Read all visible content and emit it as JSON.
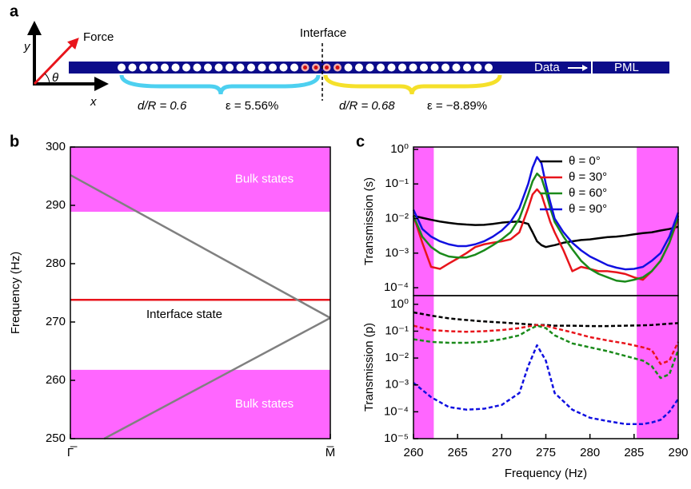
{
  "panel_a": {
    "label": "a",
    "axis_y": "y",
    "axis_x": "x",
    "force": "Force",
    "angle": "θ",
    "interface": "Interface",
    "data": "Data",
    "pml": "PML",
    "left_ratio": "d/R = 0.6",
    "left_strain": "ε = 5.56%",
    "right_ratio": "d/R = 0.68",
    "right_strain": "ε = −8.89%"
  },
  "chart_data": [
    {
      "type": "line",
      "label": "b",
      "ylabel": "Frequency (Hz)",
      "xlim": [
        0,
        1
      ],
      "xticks": [
        {
          "value": 0,
          "label": "Γ̅"
        },
        {
          "value": 1,
          "label": "M̅"
        }
      ],
      "ylim": [
        250,
        300
      ],
      "yticks": [
        250,
        260,
        270,
        280,
        290,
        300
      ],
      "bands": [
        {
          "axis": "y",
          "range": [
            288.9,
            300
          ],
          "label": "Bulk states",
          "color": "#ff66ff"
        },
        {
          "axis": "y",
          "range": [
            250,
            261.8
          ],
          "label": "Bulk states",
          "color": "#ff66ff"
        }
      ],
      "annotation": "Interface state",
      "series": [
        {
          "color": "#e8141b",
          "x": [
            0,
            1
          ],
          "values": [
            273.8,
            273.8
          ]
        },
        {
          "color": "#808080",
          "x": [
            0,
            1
          ],
          "values": [
            295.2,
            270.7
          ]
        },
        {
          "color": "#808080",
          "x": [
            0.13,
            1
          ],
          "values": [
            250,
            270.7
          ]
        }
      ]
    },
    {
      "type": "line",
      "label": "c",
      "ylabel": "Transmission (s)",
      "log_y": true,
      "legend": "upper right",
      "xlim": [
        260,
        290
      ],
      "ylim": [
        5.9e-05,
        1.17
      ],
      "yticks": [
        {
          "value": 0.0001,
          "label": "10⁻⁴"
        },
        {
          "value": 0.001,
          "label": "10⁻³"
        },
        {
          "value": 0.01,
          "label": "10⁻²"
        },
        {
          "value": 0.1,
          "label": "10⁻¹"
        },
        {
          "value": 1,
          "label": "10⁰"
        }
      ],
      "bands": [
        {
          "axis": "x",
          "range": [
            260,
            262.3
          ],
          "color": "#ff66ff"
        },
        {
          "axis": "x",
          "range": [
            285.3,
            290
          ],
          "color": "#ff66ff"
        }
      ],
      "x": [
        260,
        261,
        262,
        263,
        264,
        265,
        266,
        267,
        268,
        269,
        270,
        271,
        272,
        273,
        273.5,
        274,
        274.5,
        275,
        275.5,
        276,
        277,
        278,
        279,
        280,
        281,
        282,
        283,
        284,
        285,
        286,
        287,
        288,
        289,
        290
      ],
      "series": [
        {
          "name": "θ = 0°",
          "color": "#000000",
          "values": [
            0.012,
            0.0105,
            0.0092,
            0.0082,
            0.0075,
            0.007,
            0.0067,
            0.0065,
            0.0066,
            0.007,
            0.0076,
            0.008,
            0.0082,
            0.007,
            0.004,
            0.0022,
            0.0017,
            0.0015,
            0.0016,
            0.0017,
            0.002,
            0.0022,
            0.0024,
            0.0025,
            0.0027,
            0.0029,
            0.003,
            0.0032,
            0.0035,
            0.0038,
            0.004,
            0.0045,
            0.005,
            0.0058
          ]
        },
        {
          "name": "θ = 30°",
          "color": "#e8141b",
          "values": [
            0.012,
            0.002,
            0.0004,
            0.00035,
            0.0005,
            0.0007,
            0.001,
            0.0015,
            0.0018,
            0.002,
            0.0022,
            0.0025,
            0.004,
            0.02,
            0.05,
            0.07,
            0.05,
            0.02,
            0.008,
            0.004,
            0.0012,
            0.0003,
            0.0004,
            0.00035,
            0.0003,
            0.0003,
            0.00028,
            0.00025,
            0.0002,
            0.00017,
            0.0003,
            0.0006,
            0.002,
            0.01
          ]
        },
        {
          "name": "θ = 60°",
          "color": "#1a8a1a",
          "values": [
            0.012,
            0.003,
            0.0015,
            0.001,
            0.0008,
            0.00075,
            0.00075,
            0.0009,
            0.0012,
            0.0017,
            0.0025,
            0.004,
            0.01,
            0.05,
            0.12,
            0.2,
            0.15,
            0.06,
            0.02,
            0.008,
            0.003,
            0.0013,
            0.0006,
            0.00035,
            0.00025,
            0.0002,
            0.00016,
            0.00015,
            0.00017,
            0.0002,
            0.0003,
            0.0006,
            0.002,
            0.012
          ]
        },
        {
          "name": "θ = 90°",
          "color": "#1010e0",
          "values": [
            0.018,
            0.005,
            0.003,
            0.0022,
            0.0018,
            0.0016,
            0.0016,
            0.0018,
            0.0022,
            0.003,
            0.0045,
            0.008,
            0.02,
            0.1,
            0.3,
            0.6,
            0.4,
            0.1,
            0.03,
            0.01,
            0.004,
            0.002,
            0.0012,
            0.0008,
            0.0006,
            0.00045,
            0.00038,
            0.00034,
            0.00035,
            0.0004,
            0.0006,
            0.001,
            0.003,
            0.015
          ]
        }
      ]
    },
    {
      "type": "line",
      "ylabel": "Transmission (p)",
      "xlabel": "Frequency (Hz)",
      "log_y": true,
      "linestyle": "dashed",
      "xlim": [
        260,
        290
      ],
      "xticks": [
        260,
        265,
        270,
        275,
        280,
        285,
        290
      ],
      "ylim": [
        1e-05,
        2.1
      ],
      "yticks": [
        {
          "value": 1e-05,
          "label": "10⁻⁵"
        },
        {
          "value": 0.0001,
          "label": "10⁻⁴"
        },
        {
          "value": 0.001,
          "label": "10⁻³"
        },
        {
          "value": 0.01,
          "label": "10⁻²"
        },
        {
          "value": 0.1,
          "label": "10⁻¹"
        },
        {
          "value": 1,
          "label": "10⁰"
        }
      ],
      "bands": [
        {
          "axis": "x",
          "range": [
            260,
            262.3
          ],
          "color": "#ff66ff"
        },
        {
          "axis": "x",
          "range": [
            285.3,
            290
          ],
          "color": "#ff66ff"
        }
      ],
      "x": [
        260,
        262,
        264,
        266,
        268,
        270,
        272,
        273,
        274,
        275,
        276,
        278,
        280,
        282,
        284,
        286,
        287,
        288,
        289,
        290
      ],
      "series": [
        {
          "color": "#000000",
          "values": [
            0.5,
            0.38,
            0.3,
            0.26,
            0.23,
            0.21,
            0.19,
            0.18,
            0.17,
            0.17,
            0.16,
            0.16,
            0.155,
            0.155,
            0.16,
            0.165,
            0.17,
            0.18,
            0.19,
            0.2
          ]
        },
        {
          "color": "#e8141b",
          "values": [
            0.16,
            0.11,
            0.1,
            0.095,
            0.1,
            0.11,
            0.13,
            0.15,
            0.17,
            0.16,
            0.13,
            0.09,
            0.06,
            0.045,
            0.035,
            0.025,
            0.02,
            0.006,
            0.008,
            0.04
          ]
        },
        {
          "color": "#1a8a1a",
          "values": [
            0.05,
            0.04,
            0.037,
            0.037,
            0.04,
            0.05,
            0.07,
            0.11,
            0.16,
            0.13,
            0.07,
            0.035,
            0.025,
            0.018,
            0.012,
            0.008,
            0.005,
            0.0018,
            0.0025,
            0.02
          ]
        },
        {
          "color": "#1010e0",
          "values": [
            0.0012,
            0.00035,
            0.00015,
            0.00012,
            0.00013,
            0.00018,
            0.0005,
            0.005,
            0.03,
            0.008,
            0.0005,
            0.00012,
            6e-05,
            4.5e-05,
            3.5e-05,
            3.5e-05,
            4e-05,
            5e-05,
            0.0001,
            0.0003
          ]
        }
      ]
    }
  ]
}
